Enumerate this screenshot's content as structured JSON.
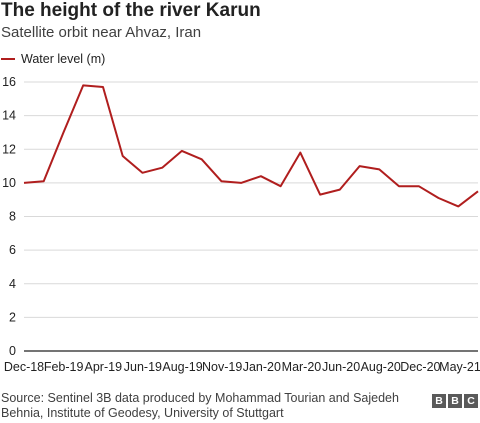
{
  "title": "The height of the river Karun",
  "subtitle": "Satellite orbit near Ahvaz, Iran",
  "source": "Source: Sentinel 3B data produced by Mohammad Tourian and Sajedeh Behnia, Institute of Geodesy, University of Stuttgart",
  "logo": [
    "B",
    "B",
    "C"
  ],
  "colors": {
    "line": "#b01e1e",
    "grid": "#d9d9d9",
    "axis": "#222222",
    "text": "#222222"
  },
  "chart_data": {
    "type": "line",
    "title": "The height of the river Karun",
    "subtitle": "Satellite orbit near Ahvaz, Iran",
    "xlabel": "",
    "ylabel": "",
    "ylim": [
      0,
      16
    ],
    "yticks": [
      0,
      2,
      4,
      6,
      8,
      10,
      12,
      14,
      16
    ],
    "grid": true,
    "legend": "top-left",
    "xticks": [
      "Dec-18",
      "Feb-19",
      "Apr-19",
      "Jun-19",
      "Aug-19",
      "Nov-19",
      "Jan-20",
      "Mar-20",
      "Jun-20",
      "Aug-20",
      "Dec-20",
      "May-21"
    ],
    "series": [
      {
        "name": "Water level (m)",
        "color": "#b01e1e",
        "values": [
          10.0,
          10.1,
          13.0,
          15.8,
          15.7,
          11.6,
          10.6,
          10.9,
          11.9,
          11.4,
          10.1,
          10.0,
          10.4,
          9.8,
          11.8,
          9.3,
          9.6,
          11.0,
          10.8,
          9.8,
          9.8,
          9.1,
          8.6,
          9.5
        ]
      }
    ]
  }
}
